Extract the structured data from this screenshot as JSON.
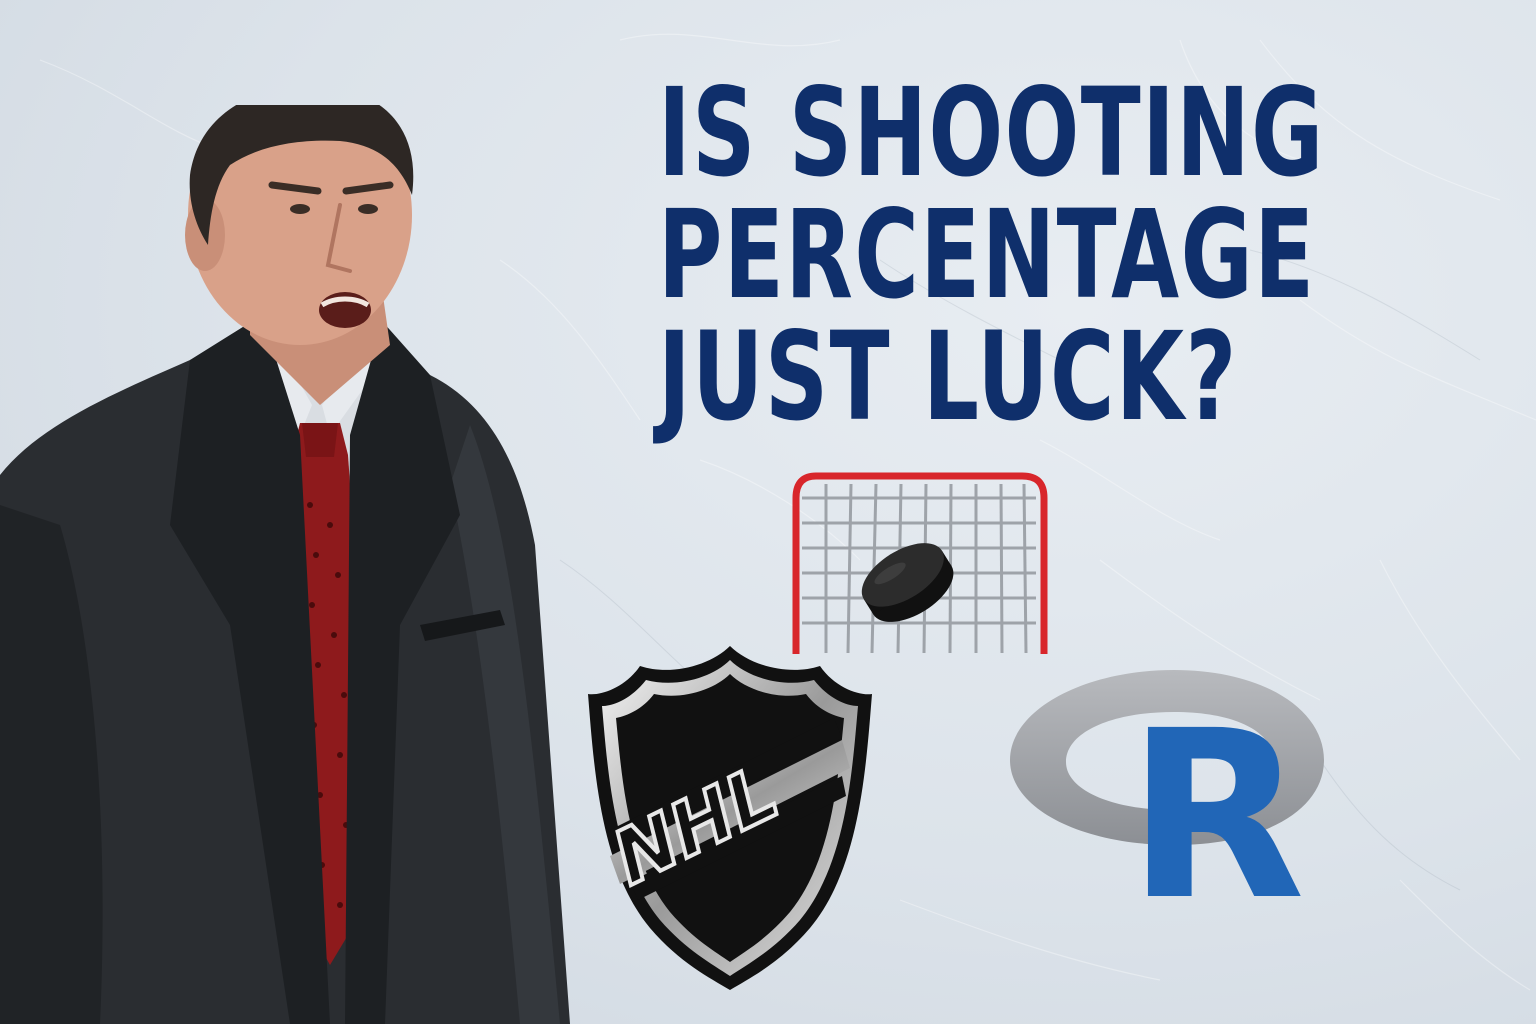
{
  "headline": {
    "line1": "IS SHOOTING",
    "line2": "PERCENTAGE",
    "line3": "JUST LUCK?"
  },
  "logos": {
    "nhl_text": "NHL",
    "r_text": "R"
  },
  "colors": {
    "background": "#dde3ea",
    "headline": "#0f2f6b",
    "net_frame": "#d8262b",
    "r_blue": "#2166b7",
    "r_ring": "#9a9da3",
    "tie": "#8e1a1c",
    "suit": "#2a2d31"
  },
  "icons": {
    "net": "hockey-net-icon",
    "puck": "hockey-puck-icon",
    "nhl": "nhl-shield-logo",
    "r": "r-language-logo"
  }
}
